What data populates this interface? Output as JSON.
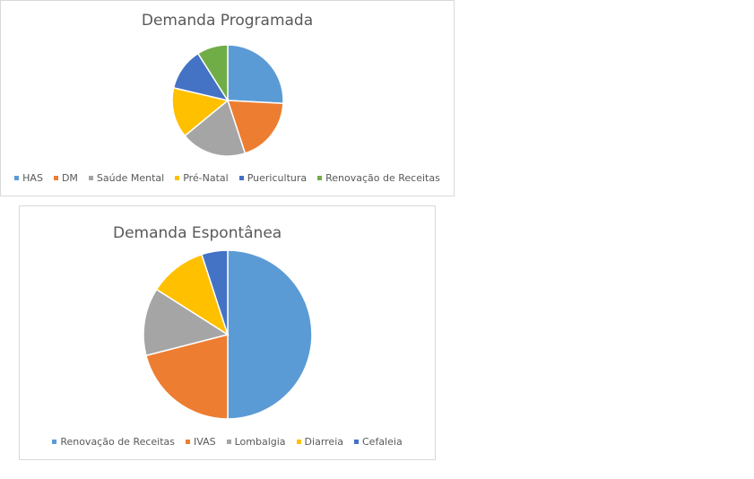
{
  "chart_data": [
    {
      "type": "pie",
      "title": "Demanda Programada",
      "categories": [
        "HAS",
        "DM",
        "Saúde Mental",
        "Pré-Natal",
        "Puericultura",
        "Renovação de Receitas"
      ],
      "values": [
        23,
        17,
        17,
        13,
        11,
        8
      ],
      "colors": [
        "#5b9bd5",
        "#ed7d31",
        "#a5a5a5",
        "#ffc000",
        "#4472c4",
        "#70ad47"
      ],
      "legend": "bottom"
    },
    {
      "type": "pie",
      "title": "Demanda Espontânea",
      "categories": [
        "Renovação de Receitas",
        "IVAS",
        "Lombalgia",
        "Diarreia",
        "Cefaleia"
      ],
      "values": [
        50,
        21,
        13,
        11,
        5
      ],
      "colors": [
        "#5b9bd5",
        "#ed7d31",
        "#a5a5a5",
        "#ffc000",
        "#4472c4"
      ],
      "legend": "bottom"
    }
  ]
}
